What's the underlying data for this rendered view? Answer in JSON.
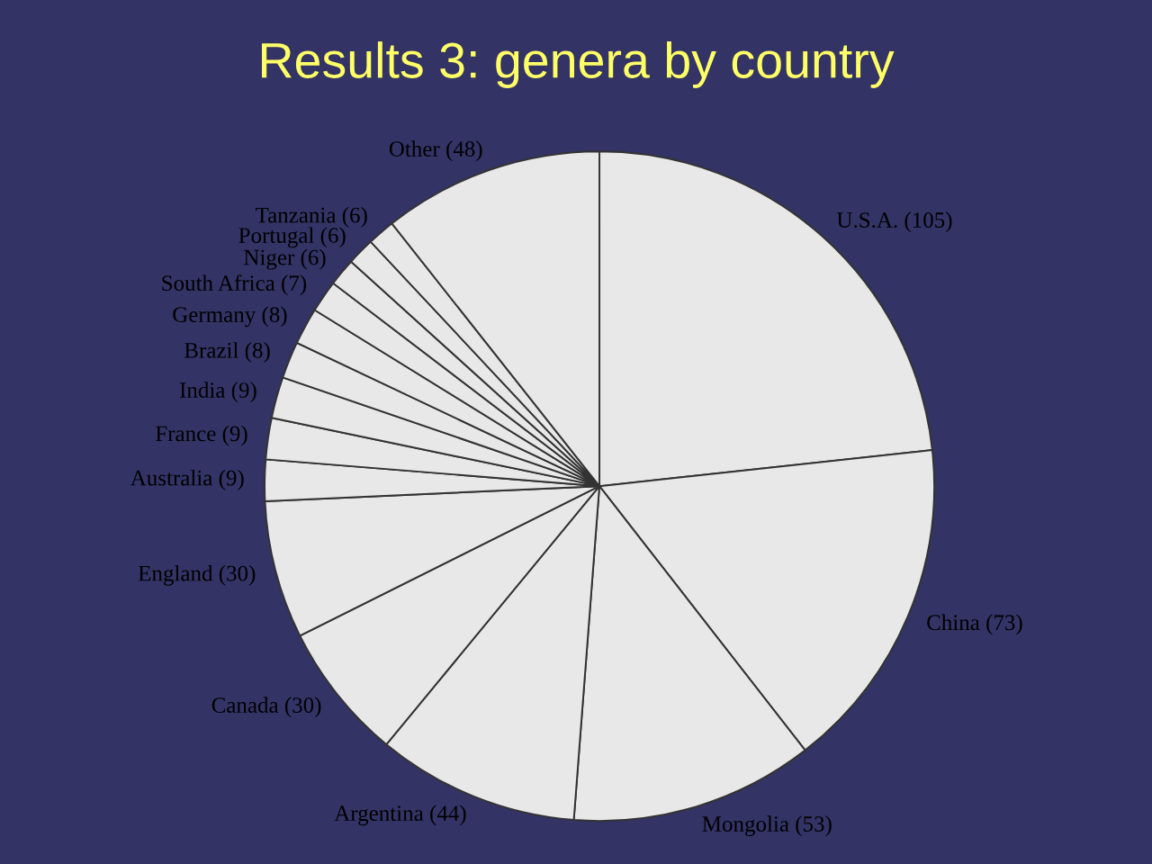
{
  "chart_data": {
    "type": "pie",
    "title": "Results 3: genera by country",
    "categories": [
      "U.S.A.",
      "China",
      "Mongolia",
      "Argentina",
      "Canada",
      "England",
      "Australia",
      "France",
      "India",
      "Brazil",
      "Germany",
      "South Africa",
      "Niger",
      "Portugal",
      "Tanzania",
      "Other"
    ],
    "values": [
      105,
      73,
      53,
      44,
      30,
      30,
      9,
      9,
      9,
      8,
      8,
      7,
      6,
      6,
      6,
      48
    ],
    "value_labels": [
      "(105)",
      "(73)",
      "(53)",
      "(44)",
      "(30)",
      "(30)",
      "(9)",
      "(9)",
      "(9)",
      "(8)",
      "(8)",
      "(7)",
      "(6)",
      "(6)",
      "(6)",
      "(48)"
    ],
    "color": "#e8e8e8"
  }
}
